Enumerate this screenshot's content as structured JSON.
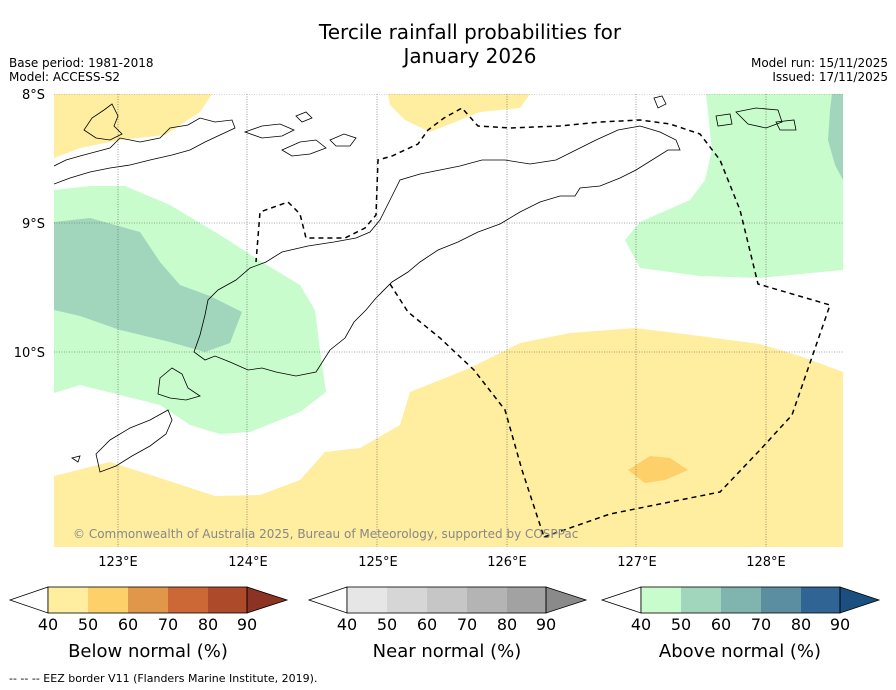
{
  "title": {
    "line1": "Tercile rainfall probabilities for",
    "line2": "January 2026"
  },
  "meta": {
    "base_period": "Base period: 1981-2018",
    "model": "Model: ACCESS-S2",
    "model_run": "Model run: 15/11/2025",
    "issued": "Issued: 17/11/2025"
  },
  "axes": {
    "lat_labels": [
      "8°S",
      "9°S",
      "10°S"
    ],
    "lon_labels": [
      "123°E",
      "124°E",
      "125°E",
      "126°E",
      "127°E",
      "128°E"
    ]
  },
  "copyright": "© Commonwealth of Australia 2025, Bureau of Meteorology, supported by COSPPac",
  "colorbars": [
    {
      "title": "Below normal (%)",
      "ticks": [
        "40",
        "50",
        "60",
        "70",
        "80",
        "90"
      ],
      "colors": [
        "#ffeda0",
        "#fed06a",
        "#e0974a",
        "#cb6835",
        "#ad4a2a",
        "#8c3323"
      ]
    },
    {
      "title": "Near normal (%)",
      "ticks": [
        "40",
        "50",
        "60",
        "70",
        "80",
        "90"
      ],
      "colors": [
        "#e6e6e6",
        "#d6d6d6",
        "#c6c6c6",
        "#b4b4b4",
        "#a2a2a2",
        "#8a8a8a"
      ]
    },
    {
      "title": "Above normal (%)",
      "ticks": [
        "40",
        "50",
        "60",
        "70",
        "80",
        "90"
      ],
      "colors": [
        "#c8fccc",
        "#a2d6bc",
        "#80b4ae",
        "#5c8ea2",
        "#306494",
        "#1a4f80"
      ]
    }
  ],
  "footnote": "--  --  -- EEZ border V11 (Flanders Marine Institute, 2019).",
  "colors": {
    "below_normal_50": "#ffeda0",
    "below_normal_60": "#fed06a",
    "above_normal_50": "#c8fccc",
    "above_normal_60": "#a2d6bc"
  }
}
